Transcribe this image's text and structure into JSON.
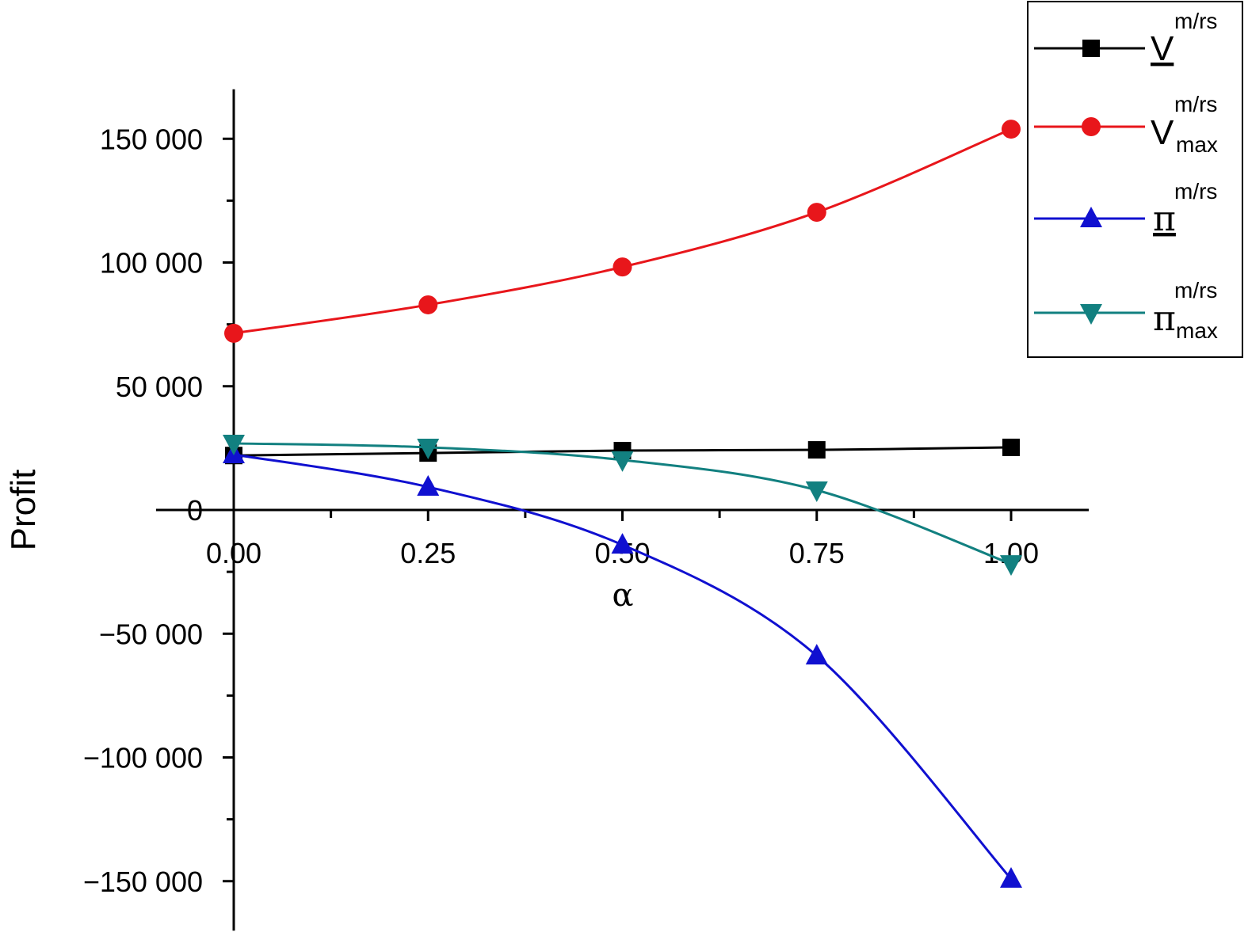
{
  "chart_data": {
    "type": "line",
    "title": "",
    "xlabel": "α",
    "ylabel": "Profit",
    "x": [
      0.0,
      0.25,
      0.5,
      0.75,
      1.0
    ],
    "xlim": [
      -0.1,
      1.1
    ],
    "ylim": [
      -170000,
      170000
    ],
    "xticks": [
      0.0,
      0.25,
      0.5,
      0.75,
      1.0
    ],
    "xtick_labels": [
      "0.00",
      "0.25",
      "0.50",
      "0.75",
      "1.00"
    ],
    "yticks": [
      150000,
      100000,
      50000,
      0,
      -50000,
      -100000,
      -150000
    ],
    "ytick_labels": [
      "150 000",
      "100 000",
      "50 000",
      "0",
      "−50 000",
      "−100 000",
      "−150 000"
    ],
    "grid": false,
    "legend_position": "top-right",
    "series": [
      {
        "name": "V_m/rs",
        "base": "V",
        "sup": "m/rs",
        "sub": "",
        "underline": true,
        "color": "#000000",
        "marker": "square",
        "values": [
          22000,
          23000,
          24000,
          24300,
          25300
        ]
      },
      {
        "name": "V_max_m/rs",
        "base": "V",
        "sup": "m/rs",
        "sub": "max",
        "underline": false,
        "color": "#e8161b",
        "marker": "circle",
        "values": [
          71400,
          82900,
          98200,
          120300,
          153900
        ]
      },
      {
        "name": "π_m/rs",
        "base": "π",
        "sup": "m/rs",
        "sub": "",
        "underline": true,
        "color": "#1010d0",
        "marker": "triangle-up",
        "values": [
          22400,
          9300,
          -14100,
          -58900,
          -149100
        ]
      },
      {
        "name": "π_max_m/rs",
        "base": "π",
        "sup": "m/rs",
        "sub": "max",
        "underline": false,
        "color": "#128080",
        "marker": "triangle-down",
        "values": [
          26900,
          25300,
          20200,
          8000,
          -21800
        ]
      }
    ]
  }
}
